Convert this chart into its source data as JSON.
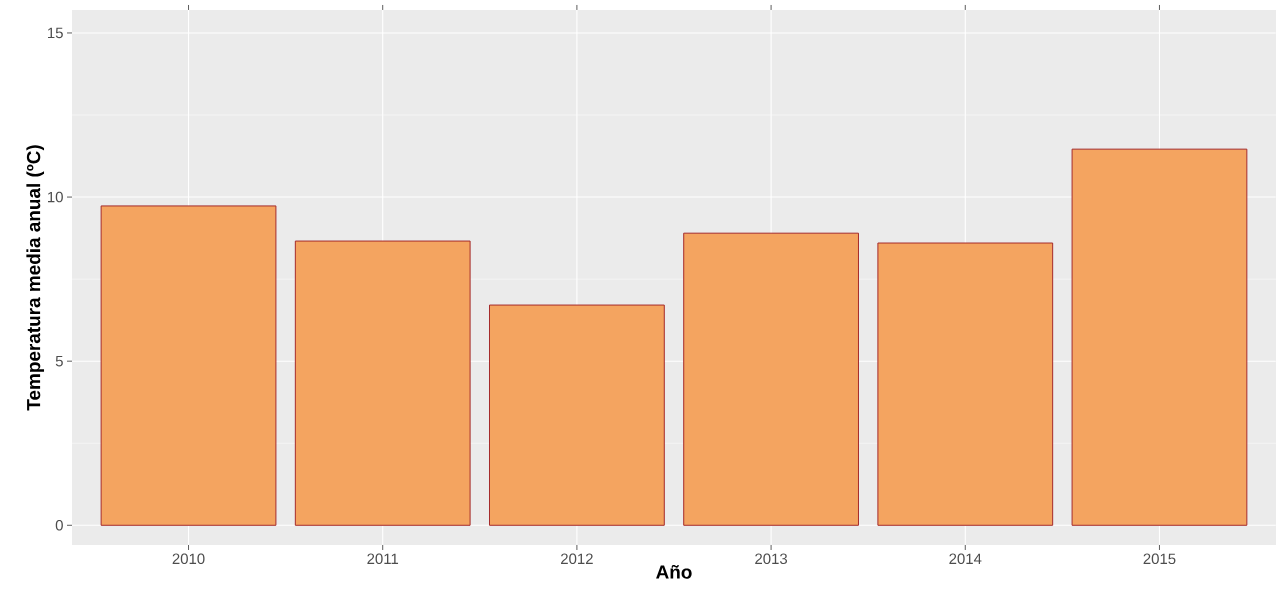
{
  "chart_data": {
    "type": "bar",
    "xlabel": "Año",
    "ylabel": "Temperatura media anual (ºC)",
    "categories": [
      "2010",
      "2011",
      "2012",
      "2013",
      "2014",
      "2015"
    ],
    "values": [
      9.73,
      8.66,
      6.71,
      8.9,
      8.6,
      11.46
    ],
    "color": "#f4a460",
    "ylim": [
      -0.6,
      15.7
    ],
    "yticks": [
      0,
      5,
      10,
      15
    ],
    "grid": true
  }
}
